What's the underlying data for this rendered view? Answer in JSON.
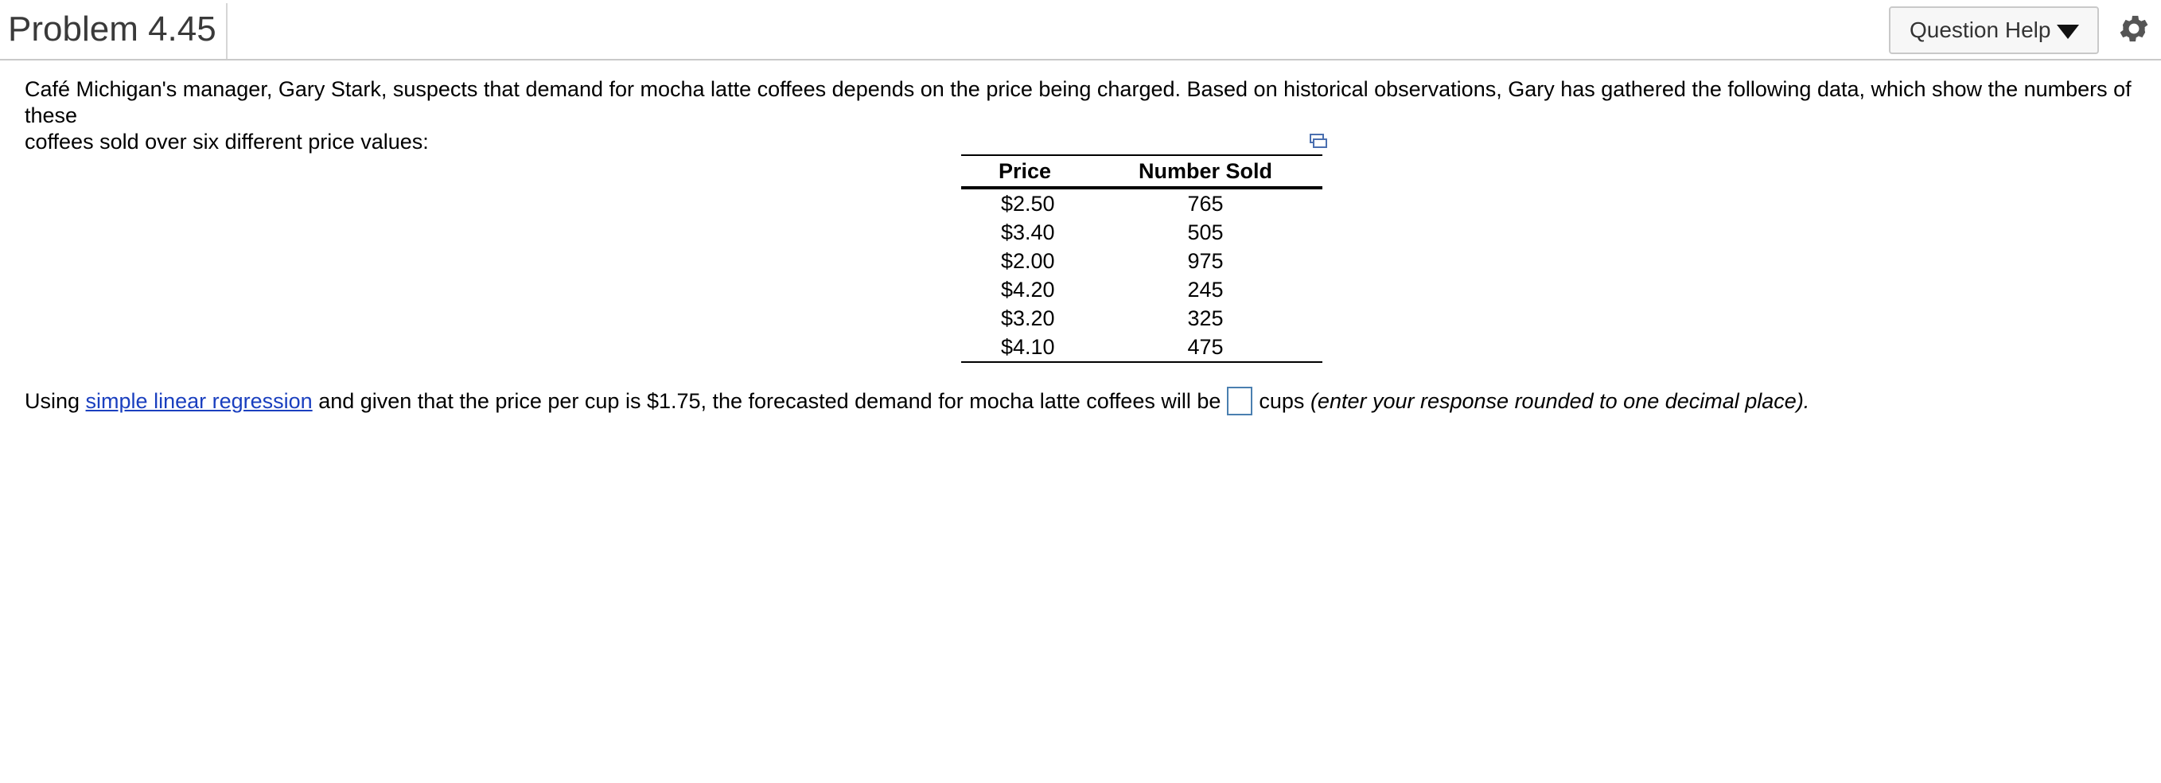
{
  "header": {
    "title": "Problem 4.45",
    "help_button_label": "Question Help"
  },
  "icons": {
    "gear": "gear-icon",
    "caret": "caret-down-icon",
    "expand": "expand-table-icon"
  },
  "problem": {
    "intro_line1": "Café Michigan's manager, Gary Stark, suspects that demand for mocha latte coffees depends on the price being charged.  Based on historical observations, Gary has gathered the following data, which show the numbers of these",
    "intro_line2": "coffees sold over six different price values:"
  },
  "table": {
    "headers": [
      "Price",
      "Number Sold"
    ],
    "rows": [
      [
        "$2.50",
        "765"
      ],
      [
        "$3.40",
        "505"
      ],
      [
        "$2.00",
        "975"
      ],
      [
        "$4.20",
        "245"
      ],
      [
        "$3.20",
        "325"
      ],
      [
        "$4.10",
        "475"
      ]
    ]
  },
  "question": {
    "prefix": "Using",
    "link_text": "simple linear regression",
    "middle": "and given that the price per cup is $1.75, the forecasted demand for mocha latte coffees will be",
    "answer_value": "",
    "suffix": "cups",
    "instruction": "(enter your response rounded to one decimal place)."
  },
  "colors": {
    "link": "#1a3fbf",
    "input_border": "#4a7fb0",
    "title": "#3a3a3a"
  }
}
